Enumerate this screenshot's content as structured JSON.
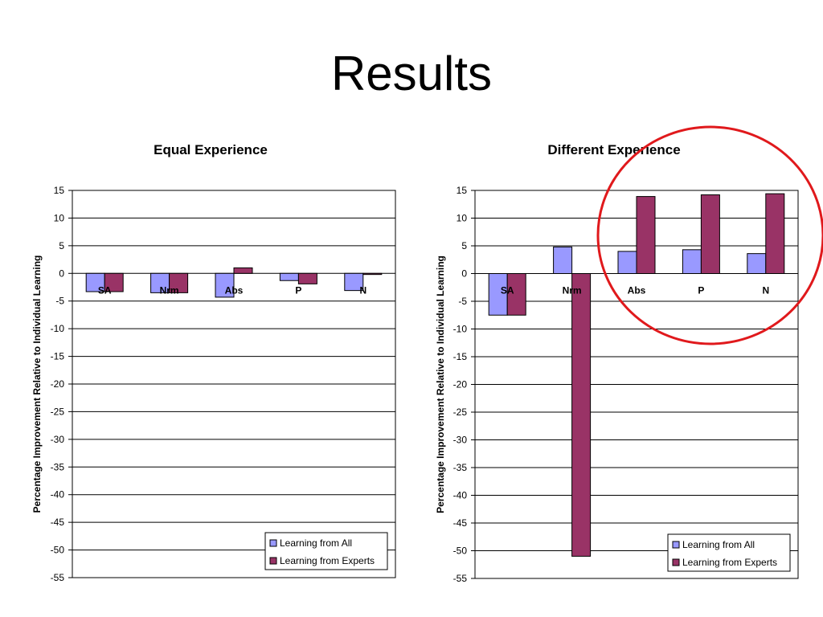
{
  "slide": {
    "title": "Results"
  },
  "colors": {
    "all": "#9999FF",
    "experts": "#993366",
    "circle": "#E0191C",
    "grid": "#000000"
  },
  "chart_data": [
    {
      "type": "bar",
      "title": "Equal Experience",
      "ylabel": "Percentage Improvement Relative to Individual Learning",
      "xlabel": "",
      "categories": [
        "SA",
        "Nrm",
        "Abs",
        "P",
        "N"
      ],
      "ylim": [
        -55,
        15
      ],
      "yticks": [
        15,
        10,
        5,
        0,
        -5,
        -10,
        -15,
        -20,
        -25,
        -30,
        -35,
        -40,
        -45,
        -50,
        -55
      ],
      "grid": true,
      "legend": "bottom-right",
      "series": [
        {
          "name": "Learning from All",
          "values": [
            -3.3,
            -3.5,
            -4.3,
            -1.3,
            -3.1
          ]
        },
        {
          "name": "Learning from Experts",
          "values": [
            -3.3,
            -3.5,
            1.0,
            -1.9,
            -0.2
          ]
        }
      ]
    },
    {
      "type": "bar",
      "title": "Different Experience",
      "ylabel": "Percentage Improvement Relative to Individual Learning",
      "xlabel": "",
      "categories": [
        "SA",
        "Nrm",
        "Abs",
        "P",
        "N"
      ],
      "ylim": [
        -55,
        15
      ],
      "yticks": [
        15,
        10,
        5,
        0,
        -5,
        -10,
        -15,
        -20,
        -25,
        -30,
        -35,
        -40,
        -45,
        -50,
        -55
      ],
      "grid": true,
      "legend": "bottom-right",
      "highlight": "circle around Abs, P, N",
      "series": [
        {
          "name": "Learning from All",
          "values": [
            -7.5,
            4.8,
            4.0,
            4.3,
            3.6
          ]
        },
        {
          "name": "Learning from Experts",
          "values": [
            -7.5,
            -51.0,
            13.9,
            14.2,
            14.4
          ]
        }
      ]
    }
  ]
}
